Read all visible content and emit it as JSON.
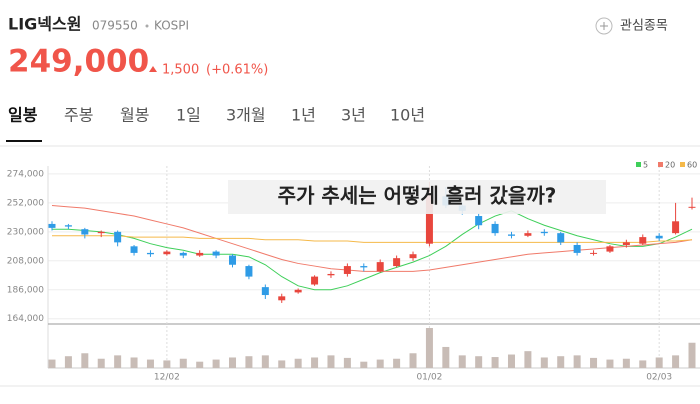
{
  "header": {
    "name": "LIG넥스원",
    "code": "079550",
    "market": "KOSPI",
    "watch": "관심종목",
    "price": "249,000",
    "change": "1,500",
    "change_pct": "(+0.61%)"
  },
  "tabs": [
    "일봉",
    "주봉",
    "월봉",
    "1일",
    "3개월",
    "1년",
    "3년",
    "10년"
  ],
  "overlay": "주가 추세는 어떻게 흘러 갔을까?",
  "chart_data": {
    "type": "candlestick",
    "categories": [
      null,
      null,
      null,
      null,
      null,
      null,
      null,
      "12/02",
      null,
      null,
      null,
      null,
      null,
      null,
      null,
      null,
      null,
      null,
      null,
      null,
      null,
      null,
      null,
      "01/02",
      null,
      null,
      null,
      null,
      null,
      null,
      null,
      null,
      null,
      null,
      null,
      null,
      null,
      "02/03",
      null,
      null
    ],
    "open": [
      236000,
      235000,
      232000,
      229000,
      230000,
      219000,
      214000,
      213000,
      214000,
      212000,
      215000,
      212000,
      204000,
      188000,
      178000,
      184000,
      190000,
      197000,
      198000,
      204000,
      200000,
      204000,
      210000,
      221000,
      257000,
      250000,
      242000,
      236000,
      228000,
      227000,
      230000,
      229000,
      220000,
      214000,
      215000,
      220000,
      221000,
      227000,
      229000,
      249000
    ],
    "high": [
      238000,
      236000,
      233000,
      231000,
      231000,
      220000,
      216000,
      216000,
      215000,
      216000,
      216000,
      213000,
      205000,
      190000,
      183000,
      187000,
      197000,
      200000,
      206000,
      206000,
      209000,
      212000,
      215000,
      268000,
      264000,
      252000,
      244000,
      238000,
      230000,
      231000,
      232000,
      230000,
      222000,
      216000,
      220000,
      224000,
      228000,
      229000,
      252000,
      256000
    ],
    "low": [
      231000,
      232000,
      225000,
      226000,
      219000,
      212000,
      211000,
      212000,
      210000,
      211000,
      210000,
      203000,
      194000,
      179000,
      176000,
      183000,
      189000,
      195000,
      196000,
      200000,
      199000,
      203000,
      208000,
      219000,
      248000,
      243000,
      232000,
      227000,
      225000,
      226000,
      227000,
      220000,
      212000,
      212000,
      214000,
      218000,
      220000,
      223000,
      228000,
      247000
    ],
    "close": [
      233000,
      234000,
      228000,
      230000,
      222000,
      214000,
      213000,
      215000,
      212000,
      214000,
      212000,
      205000,
      196000,
      182000,
      181000,
      186000,
      196000,
      198000,
      204000,
      203000,
      207000,
      210000,
      213000,
      259000,
      250000,
      246000,
      235000,
      229000,
      227000,
      229000,
      229000,
      222000,
      214000,
      214000,
      219000,
      222000,
      226000,
      225000,
      238000,
      249000
    ],
    "volume": [
      20,
      28,
      35,
      22,
      30,
      25,
      20,
      18,
      22,
      15,
      20,
      25,
      28,
      30,
      18,
      22,
      25,
      30,
      24,
      15,
      20,
      22,
      35,
      95,
      50,
      30,
      28,
      26,
      32,
      40,
      25,
      28,
      30,
      24,
      20,
      22,
      18,
      25,
      30,
      60
    ],
    "up_color": "#e8463d",
    "down_color": "#2e9be6",
    "volume_color": "#c8bcb6",
    "series": [
      {
        "name": "5",
        "color": "#3fcf5a",
        "values": [
          232000,
          232000,
          231000,
          230000,
          228000,
          225000,
          221000,
          218000,
          216000,
          213000,
          213000,
          213000,
          211000,
          205000,
          196000,
          189000,
          186000,
          186000,
          189000,
          194000,
          199000,
          203000,
          207000,
          212000,
          219000,
          228000,
          236000,
          242000,
          246000,
          240000,
          235000,
          231000,
          227000,
          224000,
          221000,
          219000,
          219000,
          221000,
          226000,
          232000
        ]
      },
      {
        "name": "20",
        "color": "#f07a6a",
        "values": [
          250000,
          249000,
          248000,
          246000,
          244000,
          242000,
          239000,
          236000,
          233000,
          229000,
          225000,
          221000,
          217000,
          213000,
          209000,
          206000,
          204000,
          202000,
          201000,
          200000,
          200000,
          200000,
          200000,
          201000,
          203000,
          205000,
          207000,
          209000,
          211000,
          213000,
          214000,
          215000,
          216000,
          217000,
          218000,
          219000,
          220000,
          221000,
          222000,
          224000
        ]
      },
      {
        "name": "60",
        "color": "#f5b94a",
        "values": [
          227000,
          227000,
          227000,
          227000,
          227000,
          226000,
          226000,
          226000,
          226000,
          225000,
          225000,
          225000,
          225000,
          224000,
          224000,
          224000,
          223000,
          223000,
          223000,
          222000,
          222000,
          222000,
          222000,
          222000,
          222000,
          222000,
          222000,
          222000,
          222000,
          222000,
          222000,
          222000,
          222000,
          222000,
          222000,
          222000,
          222000,
          223000,
          223000,
          224000
        ]
      }
    ],
    "ylim": [
      160000,
      280000
    ],
    "yticks": [
      {
        "value": 164000,
        "label": "164,000"
      },
      {
        "value": 186000,
        "label": "186,000"
      },
      {
        "value": 208000,
        "label": "208,000"
      },
      {
        "value": 230000,
        "label": "230,000"
      },
      {
        "value": 252000,
        "label": "252,000"
      },
      {
        "value": 274000,
        "label": "274,000"
      }
    ],
    "grid": true
  }
}
